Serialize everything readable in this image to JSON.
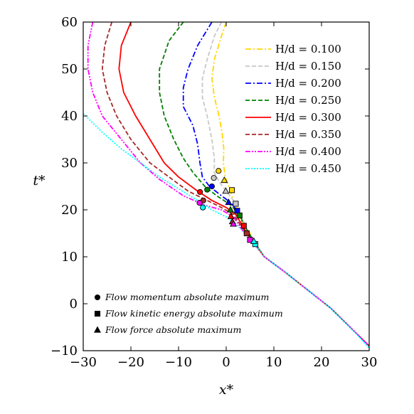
{
  "chart_data": {
    "type": "line",
    "title": "",
    "xlabel": "x*",
    "ylabel": "t*",
    "xlim": [
      -30,
      30
    ],
    "ylim": [
      -10,
      60
    ],
    "xticks": [
      -30,
      -20,
      -10,
      0,
      10,
      20,
      30
    ],
    "yticks": [
      -10,
      0,
      10,
      20,
      30,
      40,
      50,
      60
    ],
    "xtick_labels": [
      "−30",
      "−20",
      "−10",
      "0",
      "10",
      "20",
      "30"
    ],
    "ytick_labels": [
      "−10",
      "0",
      "10",
      "20",
      "30",
      "40",
      "50",
      "60"
    ],
    "grid": false,
    "legend_position": "top-right",
    "series": [
      {
        "name": "H/d = 0.100",
        "color": "#ffd700",
        "dash": "dashdot",
        "points": [
          [
            0,
            60
          ],
          [
            -1,
            57
          ],
          [
            -2.5,
            52
          ],
          [
            -3,
            48
          ],
          [
            -2.5,
            44
          ],
          [
            -1.5,
            40
          ],
          [
            -0.8,
            36
          ],
          [
            -0.5,
            33
          ],
          [
            -0.6,
            30
          ],
          [
            -0.2,
            27
          ],
          [
            0.5,
            25
          ],
          [
            1.5,
            22
          ],
          [
            3,
            18
          ],
          [
            5,
            15
          ],
          [
            6,
            13
          ],
          [
            8,
            10
          ],
          [
            12,
            7
          ],
          [
            17,
            3
          ],
          [
            22,
            -1
          ],
          [
            27,
            -6
          ],
          [
            30,
            -9
          ]
        ]
      },
      {
        "name": "H/d = 0.150",
        "color": "#c8c8c8",
        "dash": "dashed",
        "points": [
          [
            -1,
            60
          ],
          [
            -2.5,
            57
          ],
          [
            -4,
            52
          ],
          [
            -5,
            48
          ],
          [
            -5,
            44
          ],
          [
            -4,
            40
          ],
          [
            -3,
            35
          ],
          [
            -2.5,
            31
          ],
          [
            -2.5,
            28
          ],
          [
            -1.5,
            26
          ],
          [
            0,
            24
          ],
          [
            1.5,
            22
          ],
          [
            3,
            19
          ],
          [
            4.5,
            15.5
          ],
          [
            6,
            13
          ],
          [
            8,
            10
          ],
          [
            12,
            7
          ],
          [
            17,
            3
          ],
          [
            22,
            -1
          ],
          [
            27,
            -6
          ],
          [
            30,
            -9
          ]
        ]
      },
      {
        "name": "H/d = 0.200",
        "color": "#0000ff",
        "dash": "dashdot",
        "points": [
          [
            -3,
            60
          ],
          [
            -6,
            55
          ],
          [
            -8,
            50
          ],
          [
            -9,
            46
          ],
          [
            -9,
            42
          ],
          [
            -7,
            38
          ],
          [
            -6,
            34
          ],
          [
            -5.5,
            30
          ],
          [
            -5,
            27
          ],
          [
            -3.5,
            25
          ],
          [
            -1,
            23
          ],
          [
            1,
            21.5
          ],
          [
            2.5,
            19.5
          ],
          [
            4,
            16
          ],
          [
            5.5,
            13.5
          ],
          [
            8,
            10
          ],
          [
            12,
            7
          ],
          [
            17,
            3
          ],
          [
            22,
            -1
          ],
          [
            27,
            -6
          ],
          [
            30,
            -9
          ]
        ]
      },
      {
        "name": "H/d = 0.250",
        "color": "#008000",
        "dash": "dashed",
        "points": [
          [
            -9,
            60
          ],
          [
            -12,
            56
          ],
          [
            -14,
            50
          ],
          [
            -14,
            45
          ],
          [
            -13,
            40
          ],
          [
            -11,
            35
          ],
          [
            -9,
            31
          ],
          [
            -7,
            28
          ],
          [
            -4.5,
            25
          ],
          [
            -2,
            23
          ],
          [
            1,
            21
          ],
          [
            3,
            18.5
          ],
          [
            4.5,
            15.5
          ],
          [
            6,
            13
          ],
          [
            8,
            10
          ],
          [
            12,
            7
          ],
          [
            17,
            3
          ],
          [
            22,
            -1
          ],
          [
            27,
            -6
          ],
          [
            30,
            -9
          ]
        ]
      },
      {
        "name": "H/d = 0.300",
        "color": "#ff0000",
        "dash": "solid",
        "points": [
          [
            -20,
            60
          ],
          [
            -22,
            55
          ],
          [
            -22.5,
            50
          ],
          [
            -21.5,
            45
          ],
          [
            -19,
            40
          ],
          [
            -16,
            35
          ],
          [
            -13,
            30
          ],
          [
            -10,
            27
          ],
          [
            -6,
            24
          ],
          [
            -3,
            22
          ],
          [
            0,
            20.5
          ],
          [
            2,
            19
          ],
          [
            3.5,
            16.5
          ],
          [
            5,
            14
          ],
          [
            6.5,
            12
          ],
          [
            8,
            10
          ],
          [
            12,
            7
          ],
          [
            17,
            3
          ],
          [
            22,
            -1
          ],
          [
            27,
            -6
          ],
          [
            30,
            -9
          ]
        ]
      },
      {
        "name": "H/d = 0.350",
        "color": "#a52a2a",
        "dash": "dashed",
        "points": [
          [
            -24,
            60
          ],
          [
            -25.5,
            55
          ],
          [
            -26,
            50
          ],
          [
            -25,
            45
          ],
          [
            -23,
            40
          ],
          [
            -20,
            35
          ],
          [
            -16,
            30
          ],
          [
            -12,
            27
          ],
          [
            -8,
            24
          ],
          [
            -4,
            22
          ],
          [
            -1,
            20.5
          ],
          [
            1.5,
            19
          ],
          [
            3.5,
            16
          ],
          [
            5,
            14
          ],
          [
            6.5,
            12
          ],
          [
            8,
            10
          ],
          [
            12,
            7
          ],
          [
            17,
            3
          ],
          [
            22,
            -1
          ],
          [
            27,
            -6
          ],
          [
            30,
            -9
          ]
        ]
      },
      {
        "name": "H/d = 0.400",
        "color": "#ff00ff",
        "dash": "dashdotdot",
        "points": [
          [
            -28,
            60
          ],
          [
            -29,
            55
          ],
          [
            -29,
            50
          ],
          [
            -28,
            45
          ],
          [
            -26,
            40
          ],
          [
            -22,
            35
          ],
          [
            -18,
            30
          ],
          [
            -14,
            26.5
          ],
          [
            -9,
            23
          ],
          [
            -4.5,
            21
          ],
          [
            -1,
            20
          ],
          [
            1.5,
            18.5
          ],
          [
            3.5,
            15.5
          ],
          [
            5,
            13.5
          ],
          [
            6.5,
            12
          ],
          [
            8,
            10
          ],
          [
            12,
            7
          ],
          [
            17,
            3
          ],
          [
            22,
            -1
          ],
          [
            27,
            -6
          ],
          [
            30,
            -9
          ]
        ]
      },
      {
        "name": "H/d = 0.450",
        "color": "#00ffff",
        "dash": "dotted",
        "points": [
          [
            -30,
            40.5
          ],
          [
            -26,
            36.5
          ],
          [
            -22,
            33
          ],
          [
            -18,
            30
          ],
          [
            -14,
            27
          ],
          [
            -10,
            24.5
          ],
          [
            -6,
            22
          ],
          [
            -3,
            20
          ],
          [
            0,
            18.5
          ],
          [
            2,
            17
          ],
          [
            3.5,
            15.5
          ],
          [
            5,
            14
          ],
          [
            6.5,
            12
          ],
          [
            8,
            10
          ],
          [
            12,
            7
          ],
          [
            17,
            3
          ],
          [
            22,
            -1
          ],
          [
            27,
            -6
          ],
          [
            30,
            -9.5
          ]
        ]
      }
    ],
    "markers": [
      {
        "kind": "circle",
        "x": -1.6,
        "y": 28.3,
        "color": "#ffd700"
      },
      {
        "kind": "circle",
        "x": -2.6,
        "y": 26.8,
        "color": "#c8c8c8"
      },
      {
        "kind": "circle",
        "x": -3.0,
        "y": 25.0,
        "color": "#0000ff"
      },
      {
        "kind": "circle",
        "x": -4.0,
        "y": 24.3,
        "color": "#008000"
      },
      {
        "kind": "circle",
        "x": -5.5,
        "y": 23.8,
        "color": "#ff0000"
      },
      {
        "kind": "circle",
        "x": -4.8,
        "y": 22.0,
        "color": "#a52a2a"
      },
      {
        "kind": "circle",
        "x": -5.6,
        "y": 21.5,
        "color": "#ff00ff"
      },
      {
        "kind": "circle",
        "x": -4.9,
        "y": 20.5,
        "color": "#00ffff"
      },
      {
        "kind": "square",
        "x": 1.2,
        "y": 24.2,
        "color": "#ffd700"
      },
      {
        "kind": "square",
        "x": 2.0,
        "y": 21.3,
        "color": "#c8c8c8"
      },
      {
        "kind": "square",
        "x": 2.3,
        "y": 19.8,
        "color": "#0000ff"
      },
      {
        "kind": "square",
        "x": 2.8,
        "y": 18.8,
        "color": "#008000"
      },
      {
        "kind": "square",
        "x": 3.7,
        "y": 16.6,
        "color": "#ff0000"
      },
      {
        "kind": "square",
        "x": 4.3,
        "y": 15.0,
        "color": "#a52a2a"
      },
      {
        "kind": "square",
        "x": 5.0,
        "y": 13.6,
        "color": "#ff00ff"
      },
      {
        "kind": "square",
        "x": 6.1,
        "y": 12.7,
        "color": "#00ffff"
      },
      {
        "kind": "triangle",
        "x": -0.4,
        "y": 26.3,
        "color": "#ffd700"
      },
      {
        "kind": "triangle",
        "x": -0.1,
        "y": 24.0,
        "color": "#c8c8c8"
      },
      {
        "kind": "triangle",
        "x": 0.5,
        "y": 21.6,
        "color": "#0000ff"
      },
      {
        "kind": "triangle",
        "x": 0.9,
        "y": 20.0,
        "color": "#008000"
      },
      {
        "kind": "triangle",
        "x": 1.0,
        "y": 18.6,
        "color": "#ff0000"
      },
      {
        "kind": "triangle",
        "x": 1.3,
        "y": 17.5,
        "color": "#a52a2a"
      },
      {
        "kind": "triangle",
        "x": 1.5,
        "y": 17.0,
        "color": "#ff00ff"
      },
      {
        "kind": "triangle",
        "x": 5.8,
        "y": 13.3,
        "color": "#00ffff"
      }
    ],
    "legend": [
      {
        "label": "H/d = 0.100",
        "color": "#ffd700",
        "dash": "dashdot"
      },
      {
        "label": "H/d = 0.150",
        "color": "#c8c8c8",
        "dash": "dashed"
      },
      {
        "label": "H/d = 0.200",
        "color": "#0000ff",
        "dash": "dashdot"
      },
      {
        "label": "H/d = 0.250",
        "color": "#008000",
        "dash": "dashed"
      },
      {
        "label": "H/d = 0.300",
        "color": "#ff0000",
        "dash": "solid"
      },
      {
        "label": "H/d = 0.350",
        "color": "#a52a2a",
        "dash": "dashed"
      },
      {
        "label": "H/d = 0.400",
        "color": "#ff00ff",
        "dash": "dashdotdot"
      },
      {
        "label": "H/d = 0.450",
        "color": "#00ffff",
        "dash": "dotted"
      }
    ],
    "marker_legend": [
      {
        "kind": "circle",
        "label": "Flow momentum absolute maximum"
      },
      {
        "kind": "square",
        "label": "Flow kinetic energy absolute maximum"
      },
      {
        "kind": "triangle",
        "label": "Flow force absolute maximum"
      }
    ]
  }
}
